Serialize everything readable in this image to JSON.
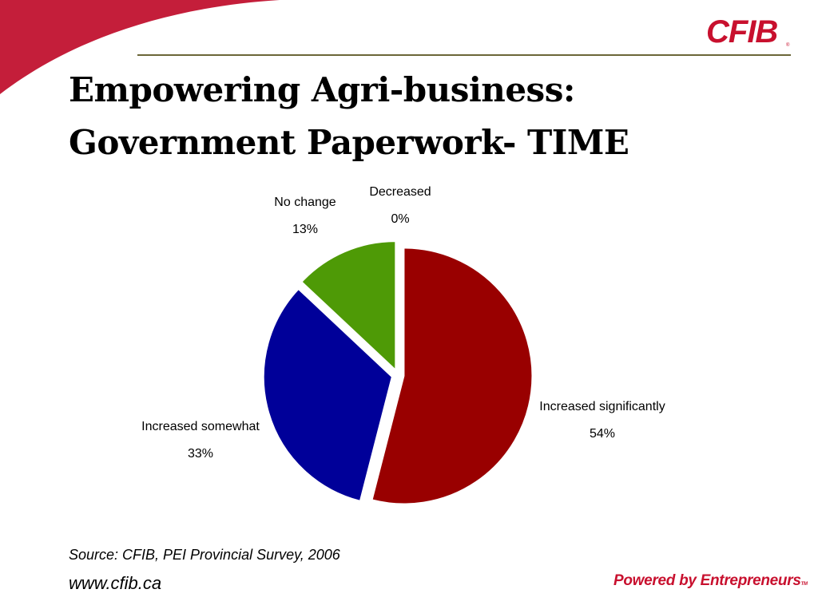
{
  "slide": {
    "title_line1": "Empowering Agri-business:",
    "title_line2": "Government Paperwork- TIME",
    "logo_text": "CFIB",
    "logo_mark": "®",
    "source": "Source: CFIB, PEI Provincial Survey, 2006",
    "website": "www.cfib.ca",
    "tagline": "Powered by Entrepreneurs",
    "tagline_mark": "TM"
  },
  "colors": {
    "brand_red": "#c8102e",
    "swoosh": "#c41e3a",
    "rule": "#6b6638",
    "increased_significantly": "#990000",
    "increased_somewhat": "#000099",
    "no_change": "#4e9a06",
    "decreased": "#ffffff"
  },
  "chart_data": {
    "type": "pie",
    "categories": [
      "Increased significantly",
      "Increased somewhat",
      "No change",
      "Decreased"
    ],
    "values": [
      54,
      33,
      13,
      0
    ],
    "value_labels": [
      "54%",
      "33%",
      "13%",
      "0%"
    ],
    "exploded": true,
    "legend": "none",
    "title": ""
  }
}
